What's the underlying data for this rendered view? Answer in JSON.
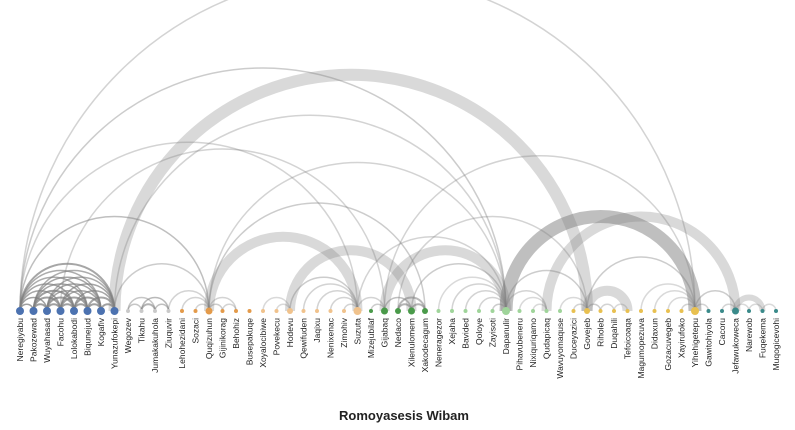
{
  "title": "Romoyasesis Wibam",
  "colors": {
    "group1": "#4c72b0",
    "group2": "#c9c9c9",
    "group3": "#e39a4a",
    "group4": "#f0c28c",
    "group5": "#4a9a4a",
    "group6": "#9fd49a",
    "group7": "#e8c050",
    "group8": "#3a8a8a",
    "arc": "#808080"
  },
  "nodes": [
    {
      "name": "Neregiyabu",
      "group": "group1",
      "size": 4
    },
    {
      "name": "Pakozewad",
      "group": "group1",
      "size": 4
    },
    {
      "name": "Wuyahasad",
      "group": "group1",
      "size": 4
    },
    {
      "name": "Facohu",
      "group": "group1",
      "size": 4
    },
    {
      "name": "Lolokabodi",
      "group": "group1",
      "size": 4
    },
    {
      "name": "Biqunejud",
      "group": "group1",
      "size": 4
    },
    {
      "name": "Kogafiv",
      "group": "group1",
      "size": 4
    },
    {
      "name": "Yunazufokepi",
      "group": "group1",
      "size": 4
    },
    {
      "name": "Wegozev",
      "group": "group2",
      "size": 2
    },
    {
      "name": "Tikahu",
      "group": "group2",
      "size": 2
    },
    {
      "name": "Jumakakuhola",
      "group": "group2",
      "size": 2
    },
    {
      "name": "Ziuquvir",
      "group": "group2",
      "size": 2
    },
    {
      "name": "Lehohezidani",
      "group": "group3",
      "size": 2
    },
    {
      "name": "Sozaci",
      "group": "group3",
      "size": 2
    },
    {
      "name": "Quqizuhun",
      "group": "group3",
      "size": 3.5
    },
    {
      "name": "Gijinikorag",
      "group": "group3",
      "size": 2
    },
    {
      "name": "Behohiz",
      "group": "group3",
      "size": 2
    },
    {
      "name": "Busepakuqe",
      "group": "group3",
      "size": 2
    },
    {
      "name": "Xoyalocibiwe",
      "group": "group4",
      "size": 2
    },
    {
      "name": "Povekecu",
      "group": "group4",
      "size": 2
    },
    {
      "name": "Hodevu",
      "group": "group4",
      "size": 3
    },
    {
      "name": "Qewifuden",
      "group": "group4",
      "size": 2
    },
    {
      "name": "Jaqixu",
      "group": "group4",
      "size": 2
    },
    {
      "name": "Nenixenac",
      "group": "group4",
      "size": 2
    },
    {
      "name": "Zimohiv",
      "group": "group4",
      "size": 2
    },
    {
      "name": "Suzuta",
      "group": "group4",
      "size": 4
    },
    {
      "name": "Mizejubilaf",
      "group": "group5",
      "size": 2
    },
    {
      "name": "Gijabaq",
      "group": "group5",
      "size": 3.5
    },
    {
      "name": "Nedaco",
      "group": "group5",
      "size": 3
    },
    {
      "name": "Xilenulomem",
      "group": "group5",
      "size": 3.5
    },
    {
      "name": "Xakodecagum",
      "group": "group5",
      "size": 3
    },
    {
      "name": "Neneragezor",
      "group": "group6",
      "size": 2
    },
    {
      "name": "Xejaha",
      "group": "group6",
      "size": 2
    },
    {
      "name": "Bavided",
      "group": "group6",
      "size": 2
    },
    {
      "name": "Qoloye",
      "group": "group6",
      "size": 2
    },
    {
      "name": "Zayisoti",
      "group": "group6",
      "size": 2
    },
    {
      "name": "Dapanulir",
      "group": "group6",
      "size": 4
    },
    {
      "name": "Pihavubeneru",
      "group": "group6",
      "size": 2
    },
    {
      "name": "Nixiquriqamo",
      "group": "group6",
      "size": 2
    },
    {
      "name": "Qudapicaq",
      "group": "group6",
      "size": 2
    },
    {
      "name": "Wavuyomaquse",
      "group": "group6",
      "size": 2
    },
    {
      "name": "Duceyazici",
      "group": "group7",
      "size": 2
    },
    {
      "name": "Govejeb",
      "group": "group7",
      "size": 3
    },
    {
      "name": "Riholeb",
      "group": "group7",
      "size": 2
    },
    {
      "name": "Duqahili",
      "group": "group7",
      "size": 2
    },
    {
      "name": "Tefoicoaqa",
      "group": "group7",
      "size": 2
    },
    {
      "name": "Magumopezuva",
      "group": "group7",
      "size": 2
    },
    {
      "name": "Didaxun",
      "group": "group7",
      "size": 2
    },
    {
      "name": "Gozacuvegeb",
      "group": "group7",
      "size": 2
    },
    {
      "name": "Xayirufoko",
      "group": "group7",
      "size": 2
    },
    {
      "name": "Yihehigetepu",
      "group": "group7",
      "size": 4
    },
    {
      "name": "Gawitohiyola",
      "group": "group8",
      "size": 2
    },
    {
      "name": "Cacoru",
      "group": "group8",
      "size": 2
    },
    {
      "name": "Jefawukoweca",
      "group": "group8",
      "size": 3.5
    },
    {
      "name": "Narewob",
      "group": "group8",
      "size": 2
    },
    {
      "name": "Fuqekema",
      "group": "group8",
      "size": 2
    },
    {
      "name": "Muqogicevohi",
      "group": "group8",
      "size": 2
    }
  ],
  "links": [
    {
      "s": 0,
      "t": 1,
      "w": 1.5,
      "o": 0.75
    },
    {
      "s": 0,
      "t": 2,
      "w": 1.5,
      "o": 0.75
    },
    {
      "s": 0,
      "t": 3,
      "w": 1.5,
      "o": 0.7
    },
    {
      "s": 0,
      "t": 4,
      "w": 1.5,
      "o": 0.7
    },
    {
      "s": 0,
      "t": 5,
      "w": 1.5,
      "o": 0.65
    },
    {
      "s": 0,
      "t": 6,
      "w": 1.5,
      "o": 0.65
    },
    {
      "s": 0,
      "t": 7,
      "w": 2,
      "o": 0.7
    },
    {
      "s": 1,
      "t": 2,
      "w": 2,
      "o": 0.75
    },
    {
      "s": 1,
      "t": 3,
      "w": 2,
      "o": 0.75
    },
    {
      "s": 1,
      "t": 4,
      "w": 2,
      "o": 0.75
    },
    {
      "s": 1,
      "t": 5,
      "w": 1.5,
      "o": 0.7
    },
    {
      "s": 1,
      "t": 6,
      "w": 1.5,
      "o": 0.7
    },
    {
      "s": 1,
      "t": 7,
      "w": 1.5,
      "o": 0.65
    },
    {
      "s": 2,
      "t": 3,
      "w": 2,
      "o": 0.75
    },
    {
      "s": 2,
      "t": 4,
      "w": 2,
      "o": 0.75
    },
    {
      "s": 2,
      "t": 5,
      "w": 1.5,
      "o": 0.7
    },
    {
      "s": 2,
      "t": 6,
      "w": 1.5,
      "o": 0.7
    },
    {
      "s": 2,
      "t": 7,
      "w": 1.5,
      "o": 0.65
    },
    {
      "s": 3,
      "t": 4,
      "w": 2,
      "o": 0.75
    },
    {
      "s": 3,
      "t": 5,
      "w": 2,
      "o": 0.75
    },
    {
      "s": 3,
      "t": 6,
      "w": 1.5,
      "o": 0.7
    },
    {
      "s": 3,
      "t": 7,
      "w": 1.5,
      "o": 0.7
    },
    {
      "s": 4,
      "t": 5,
      "w": 2,
      "o": 0.75
    },
    {
      "s": 4,
      "t": 6,
      "w": 2,
      "o": 0.75
    },
    {
      "s": 4,
      "t": 7,
      "w": 1.5,
      "o": 0.7
    },
    {
      "s": 5,
      "t": 6,
      "w": 2,
      "o": 0.75
    },
    {
      "s": 5,
      "t": 7,
      "w": 2,
      "o": 0.7
    },
    {
      "s": 6,
      "t": 7,
      "w": 2,
      "o": 0.75
    },
    {
      "s": 0,
      "t": 14,
      "w": 1.5,
      "o": 0.5
    },
    {
      "s": 0,
      "t": 36,
      "w": 1.5,
      "o": 0.4
    },
    {
      "s": 0,
      "t": 50,
      "w": 1.5,
      "o": 0.35
    },
    {
      "s": 0,
      "t": 25,
      "w": 1.5,
      "o": 0.35
    },
    {
      "s": 7,
      "t": 42,
      "w": 12,
      "o": 0.3
    },
    {
      "s": 7,
      "t": 14,
      "w": 1.5,
      "o": 0.4
    },
    {
      "s": 7,
      "t": 36,
      "w": 1.5,
      "o": 0.35
    },
    {
      "s": 3,
      "t": 27,
      "w": 1.5,
      "o": 0.35
    },
    {
      "s": 8,
      "t": 9,
      "w": 1.5,
      "o": 0.45
    },
    {
      "s": 8,
      "t": 10,
      "w": 1.5,
      "o": 0.45
    },
    {
      "s": 9,
      "t": 10,
      "w": 2,
      "o": 0.6
    },
    {
      "s": 9,
      "t": 11,
      "w": 1.5,
      "o": 0.55
    },
    {
      "s": 10,
      "t": 11,
      "w": 1.5,
      "o": 0.5
    },
    {
      "s": 11,
      "t": 14,
      "w": 1.5,
      "o": 0.35
    },
    {
      "s": 12,
      "t": 14,
      "w": 1.5,
      "o": 0.35
    },
    {
      "s": 13,
      "t": 14,
      "w": 1.5,
      "o": 0.35
    },
    {
      "s": 14,
      "t": 15,
      "w": 1.5,
      "o": 0.4
    },
    {
      "s": 14,
      "t": 16,
      "w": 1.5,
      "o": 0.35
    },
    {
      "s": 15,
      "t": 16,
      "w": 1.5,
      "o": 0.35
    },
    {
      "s": 14,
      "t": 25,
      "w": 10,
      "o": 0.3
    },
    {
      "s": 14,
      "t": 30,
      "w": 1.5,
      "o": 0.4
    },
    {
      "s": 14,
      "t": 36,
      "w": 1.5,
      "o": 0.35
    },
    {
      "s": 18,
      "t": 20,
      "w": 1.5,
      "o": 0.3
    },
    {
      "s": 19,
      "t": 20,
      "w": 1.5,
      "o": 0.3
    },
    {
      "s": 20,
      "t": 25,
      "w": 1.5,
      "o": 0.4
    },
    {
      "s": 20,
      "t": 29,
      "w": 10,
      "o": 0.3
    },
    {
      "s": 21,
      "t": 25,
      "w": 1.5,
      "o": 0.35
    },
    {
      "s": 22,
      "t": 25,
      "w": 1.5,
      "o": 0.35
    },
    {
      "s": 23,
      "t": 25,
      "w": 1.5,
      "o": 0.35
    },
    {
      "s": 24,
      "t": 25,
      "w": 1.5,
      "o": 0.35
    },
    {
      "s": 25,
      "t": 27,
      "w": 1.5,
      "o": 0.35
    },
    {
      "s": 25,
      "t": 36,
      "w": 1.5,
      "o": 0.35
    },
    {
      "s": 26,
      "t": 27,
      "w": 1.5,
      "o": 0.4
    },
    {
      "s": 27,
      "t": 29,
      "w": 1.5,
      "o": 0.5
    },
    {
      "s": 27,
      "t": 36,
      "w": 10,
      "o": 0.3
    },
    {
      "s": 27,
      "t": 50,
      "w": 1.5,
      "o": 0.35
    },
    {
      "s": 28,
      "t": 29,
      "w": 2,
      "o": 0.6
    },
    {
      "s": 28,
      "t": 30,
      "w": 2,
      "o": 0.55
    },
    {
      "s": 29,
      "t": 30,
      "w": 2,
      "o": 0.6
    },
    {
      "s": 29,
      "t": 36,
      "w": 1.5,
      "o": 0.4
    },
    {
      "s": 28,
      "t": 42,
      "w": 1.5,
      "o": 0.35
    },
    {
      "s": 31,
      "t": 36,
      "w": 1.5,
      "o": 0.3
    },
    {
      "s": 32,
      "t": 36,
      "w": 1.5,
      "o": 0.35
    },
    {
      "s": 33,
      "t": 36,
      "w": 1.5,
      "o": 0.35
    },
    {
      "s": 34,
      "t": 36,
      "w": 1.5,
      "o": 0.35
    },
    {
      "s": 35,
      "t": 36,
      "w": 1.5,
      "o": 0.4
    },
    {
      "s": 36,
      "t": 50,
      "w": 13,
      "o": 0.5
    },
    {
      "s": 36,
      "t": 42,
      "w": 1.5,
      "o": 0.4
    },
    {
      "s": 36,
      "t": 39,
      "w": 1.5,
      "o": 0.35
    },
    {
      "s": 37,
      "t": 39,
      "w": 1.5,
      "o": 0.3
    },
    {
      "s": 38,
      "t": 39,
      "w": 1.5,
      "o": 0.3
    },
    {
      "s": 39,
      "t": 53,
      "w": 10,
      "o": 0.3
    },
    {
      "s": 40,
      "t": 42,
      "w": 1.5,
      "o": 0.3
    },
    {
      "s": 41,
      "t": 42,
      "w": 1.5,
      "o": 0.35
    },
    {
      "s": 42,
      "t": 43,
      "w": 1.5,
      "o": 0.4
    },
    {
      "s": 42,
      "t": 45,
      "w": 10,
      "o": 0.3
    },
    {
      "s": 42,
      "t": 50,
      "w": 1.5,
      "o": 0.4
    },
    {
      "s": 43,
      "t": 44,
      "w": 1.5,
      "o": 0.35
    },
    {
      "s": 44,
      "t": 45,
      "w": 1.5,
      "o": 0.3
    },
    {
      "s": 46,
      "t": 50,
      "w": 1.5,
      "o": 0.3
    },
    {
      "s": 47,
      "t": 50,
      "w": 1.5,
      "o": 0.3
    },
    {
      "s": 48,
      "t": 50,
      "w": 1.5,
      "o": 0.3
    },
    {
      "s": 49,
      "t": 50,
      "w": 1.5,
      "o": 0.35
    },
    {
      "s": 50,
      "t": 51,
      "w": 1.5,
      "o": 0.35
    },
    {
      "s": 50,
      "t": 53,
      "w": 1.5,
      "o": 0.4
    },
    {
      "s": 52,
      "t": 53,
      "w": 1.5,
      "o": 0.35
    },
    {
      "s": 53,
      "t": 54,
      "w": 1.5,
      "o": 0.3
    },
    {
      "s": 53,
      "t": 55,
      "w": 6,
      "o": 0.3
    },
    {
      "s": 54,
      "t": 55,
      "w": 1.5,
      "o": 0.3
    },
    {
      "s": 55,
      "t": 56,
      "w": 1.5,
      "o": 0.3
    }
  ]
}
